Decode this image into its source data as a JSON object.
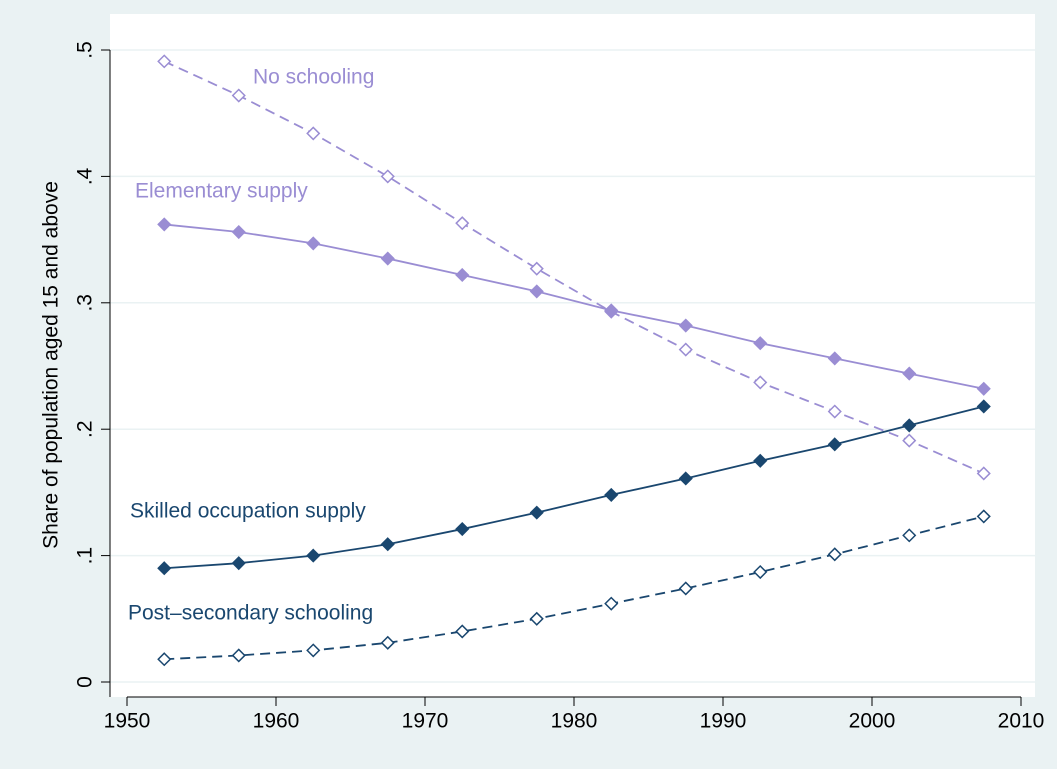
{
  "chart_data": {
    "type": "line",
    "y_label": "Share of population aged 15 and above",
    "x": [
      1952.5,
      1957.5,
      1962.5,
      1967.5,
      1972.5,
      1977.5,
      1982.5,
      1987.5,
      1992.5,
      1997.5,
      2002.5,
      2007.5
    ],
    "series": [
      {
        "name": "No schooling",
        "color": "#9a8dd3",
        "style": "dashed",
        "marker": "hollow",
        "values": [
          0.491,
          0.464,
          0.434,
          0.4,
          0.363,
          0.327,
          0.293,
          0.263,
          0.237,
          0.214,
          0.191,
          0.165
        ]
      },
      {
        "name": "Elementary supply",
        "color": "#9a8dd3",
        "style": "solid",
        "marker": "filled",
        "values": [
          0.362,
          0.356,
          0.347,
          0.335,
          0.322,
          0.309,
          0.294,
          0.282,
          0.268,
          0.256,
          0.244,
          0.232
        ]
      },
      {
        "name": "Skilled occupation supply",
        "color": "#1a476f",
        "style": "solid",
        "marker": "filled",
        "values": [
          0.09,
          0.094,
          0.1,
          0.109,
          0.121,
          0.134,
          0.148,
          0.161,
          0.175,
          0.188,
          0.203,
          0.218
        ]
      },
      {
        "name": "Post–secondary schooling",
        "color": "#1a476f",
        "style": "dashed",
        "marker": "hollow",
        "values": [
          0.018,
          0.021,
          0.025,
          0.031,
          0.04,
          0.05,
          0.062,
          0.074,
          0.087,
          0.101,
          0.116,
          0.131
        ]
      }
    ],
    "xlim": [
      1950,
      2010
    ],
    "xticks": [
      1950,
      1960,
      1970,
      1980,
      1990,
      2000,
      2010
    ],
    "ylim": [
      0,
      0.5
    ],
    "yticks": [
      0,
      {
        "value": 0.1,
        "label": ".1"
      },
      {
        "value": 0.2,
        "label": ".2"
      },
      {
        "value": 0.3,
        "label": ".3"
      },
      {
        "value": 0.4,
        "label": ".4"
      },
      {
        "value": 0.5,
        "label": ".5"
      }
    ],
    "grid": true
  }
}
